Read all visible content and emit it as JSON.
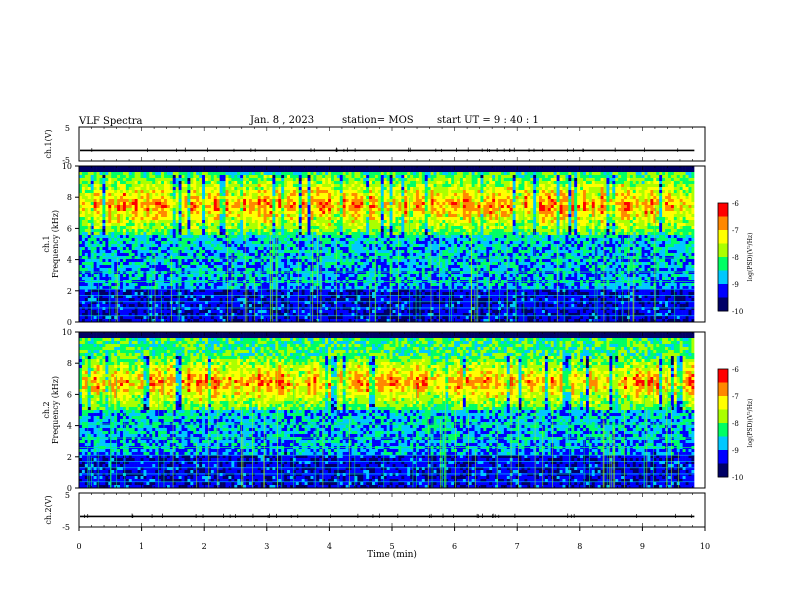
{
  "header": {
    "title": "VLF Spectra",
    "date": "Jan. 8 , 2023",
    "station": "station= MOS",
    "start": "start UT = 9 : 40 : 1"
  },
  "chart_data": [
    {
      "type": "line",
      "name_label": "ch.1(V)",
      "ylim": [
        -5,
        5
      ],
      "yticks": [
        "5",
        "-5"
      ],
      "xlim": [
        0,
        10
      ],
      "baseline": -1.9
    },
    {
      "type": "heatmap",
      "ylabel": "ch.1\nFrequency (kHz)",
      "ylabel_top": "ch.1",
      "ylabel_bottom": "Frequency (kHz)",
      "ylim": [
        0,
        10
      ],
      "yticks": [
        "0",
        "2",
        "4",
        "6",
        "8",
        "10"
      ],
      "xlim": [
        0,
        10
      ],
      "data_extent_min": 9.83,
      "colorbar": {
        "label": "log(PSD)(V²/Hz)",
        "range": [
          -10,
          -6
        ],
        "ticks": [
          "-6",
          "-7",
          "-8",
          "-9",
          "-10"
        ]
      },
      "band_khz": [
        5.5,
        9.5
      ]
    },
    {
      "type": "heatmap",
      "ylabel_top": "ch.2",
      "ylabel_bottom": "Frequency (kHz)",
      "ylim": [
        0,
        10
      ],
      "yticks": [
        "0",
        "2",
        "4",
        "6",
        "8",
        "10"
      ],
      "xlim": [
        0,
        10
      ],
      "data_extent_min": 9.83,
      "colorbar": {
        "label": "log(PSD)(V²/Hz)",
        "range": [
          -10,
          -6
        ],
        "ticks": [
          "-6",
          "-7",
          "-8",
          "-9",
          "-10"
        ]
      },
      "band_khz": [
        5,
        8.5
      ]
    },
    {
      "type": "line",
      "name_label": "ch.2(V)",
      "ylim": [
        -5,
        5
      ],
      "yticks": [
        "5",
        "-5"
      ],
      "xlim": [
        0,
        10
      ],
      "baseline": -1.9,
      "xlabel": "Time (min)",
      "xticks": [
        "0",
        "1",
        "2",
        "3",
        "4",
        "5",
        "6",
        "7",
        "8",
        "9",
        "10"
      ]
    }
  ],
  "colors": {
    "scale": [
      "#000066",
      "#0000ff",
      "#00c8ff",
      "#00ff64",
      "#aaff00",
      "#ffff00",
      "#ff8800",
      "#ff0000",
      "#ffffff"
    ]
  }
}
